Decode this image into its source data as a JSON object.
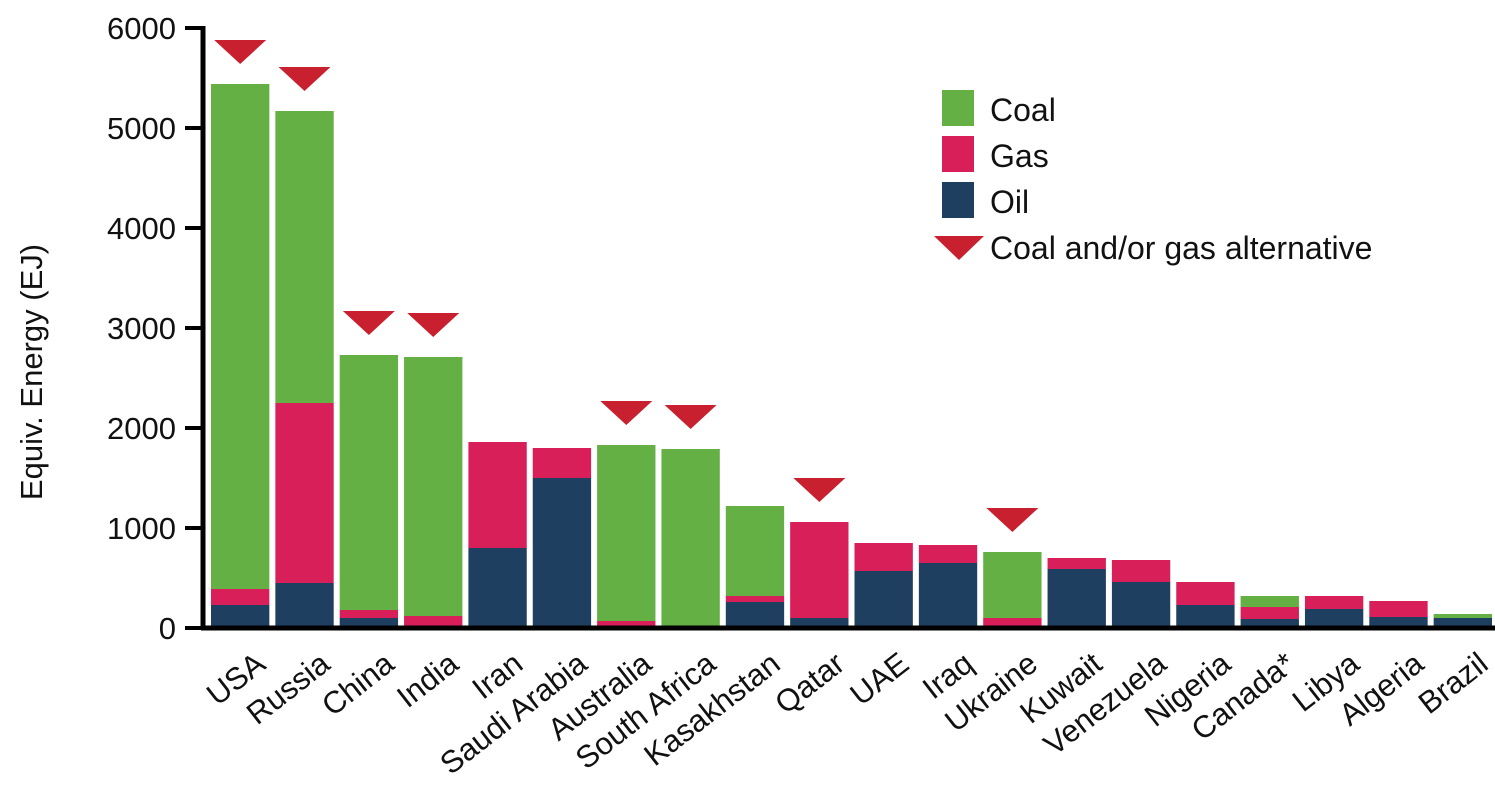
{
  "chart_data": {
    "type": "bar",
    "stacked": true,
    "title": "",
    "xlabel": "",
    "ylabel": "Equiv. Energy (EJ)",
    "ylim": [
      0,
      6000
    ],
    "yticks": [
      0,
      1000,
      2000,
      3000,
      4000,
      5000,
      6000
    ],
    "grid": false,
    "legend_position": "top-right",
    "categories": [
      "USA",
      "Russia",
      "China",
      "India",
      "Iran",
      "Saudi Arabia",
      "Australia",
      "South Africa",
      "Kasakhstan",
      "Qatar",
      "UAE",
      "Iraq",
      "Ukraine",
      "Kuwait",
      "Venezuela",
      "Nigeria",
      "Canada*",
      "Libya",
      "Algeria",
      "Brazil"
    ],
    "series": [
      {
        "name": "Oil",
        "color": "#1f3f60",
        "values": [
          230,
          450,
          100,
          10,
          800,
          1500,
          10,
          0,
          260,
          100,
          570,
          650,
          20,
          590,
          460,
          230,
          90,
          190,
          110,
          100
        ]
      },
      {
        "name": "Gas",
        "color": "#d81f5a",
        "values": [
          160,
          1800,
          80,
          110,
          1060,
          300,
          60,
          0,
          60,
          960,
          280,
          180,
          80,
          110,
          220,
          230,
          120,
          130,
          160,
          0
        ]
      },
      {
        "name": "Coal",
        "color": "#64b045",
        "values": [
          5050,
          2920,
          2550,
          2590,
          0,
          0,
          1760,
          1790,
          900,
          0,
          0,
          0,
          660,
          0,
          0,
          0,
          110,
          0,
          0,
          40
        ]
      }
    ],
    "alternative_marker": {
      "label": "Coal and/or gas alternative",
      "color": "#c8202e",
      "categories": [
        "USA",
        "Russia",
        "China",
        "India",
        "Australia",
        "South Africa",
        "Qatar",
        "Ukraine"
      ]
    }
  }
}
